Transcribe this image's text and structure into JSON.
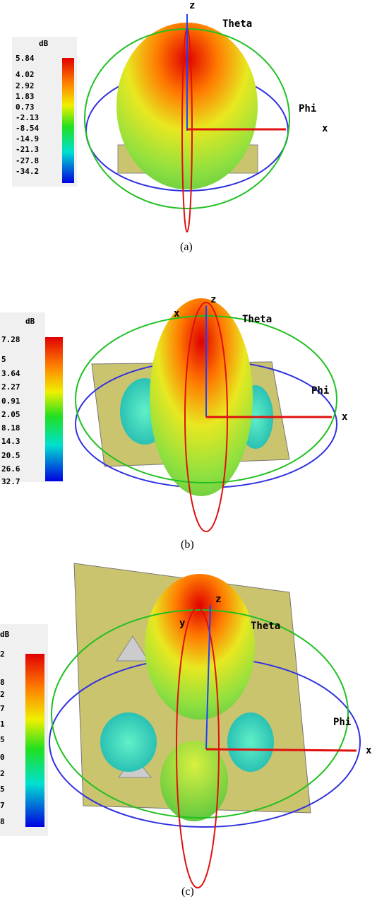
{
  "panels": [
    {
      "caption": "(a)",
      "axes": {
        "z": "z",
        "theta": "Theta",
        "phi": "Phi",
        "x": "x"
      },
      "legend": {
        "unit": "dB",
        "ticks": [
          "5.84",
          "4.02",
          "2.92",
          "1.83",
          "0.73",
          "-2.13",
          "-8.54",
          "-14.9",
          "-21.3",
          "-27.8",
          "-34.2"
        ]
      }
    },
    {
      "caption": "(b)",
      "axes": {
        "z": "z",
        "theta": "Theta",
        "phi": "Phi",
        "x": "x",
        "y": "x"
      },
      "legend": {
        "unit": "dB",
        "ticks": [
          "7.28",
          "5",
          "3.64",
          "2.27",
          "0.91",
          "2.05",
          "8.18",
          "14.3",
          "20.5",
          "26.6",
          "32.7"
        ]
      }
    },
    {
      "caption": "(c)",
      "axes": {
        "z": "z",
        "theta": "Theta",
        "phi": "Phi",
        "x": "x",
        "y": "y"
      },
      "legend": {
        "unit": "dB",
        "ticks": [
          "2",
          "8",
          "2",
          "7",
          "1",
          "5",
          "0",
          "2",
          "5",
          "7",
          "8"
        ]
      }
    }
  ]
}
